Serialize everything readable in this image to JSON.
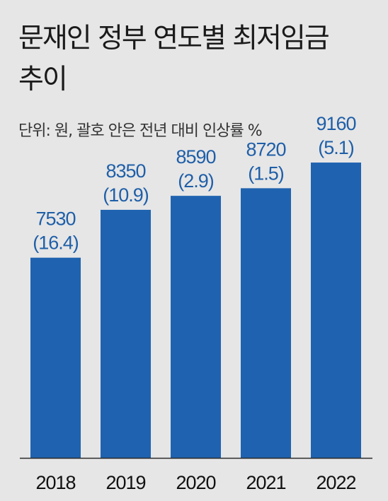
{
  "header": {
    "title_line1": "문재인 정부 연도별 최저임금",
    "title_line2": "추이",
    "unit_note": "단위: 원, 괄호 안은 전년 대비 인상률 %"
  },
  "chart_data": {
    "type": "bar",
    "categories": [
      "2018",
      "2019",
      "2020",
      "2021",
      "2022"
    ],
    "values": [
      7530,
      8350,
      8590,
      8720,
      9160
    ],
    "increase_pct": [
      "(16.4)",
      "(10.9)",
      "(2.9)",
      "(1.5)",
      "(5.1)"
    ],
    "title": "문재인 정부 연도별 최저임금 추이",
    "ylabel": "",
    "xlabel": "",
    "grid": false,
    "colors": {
      "bar": "#1f63b0",
      "value_label": "#1f5fa8",
      "axis": "#2a2a2a"
    }
  }
}
